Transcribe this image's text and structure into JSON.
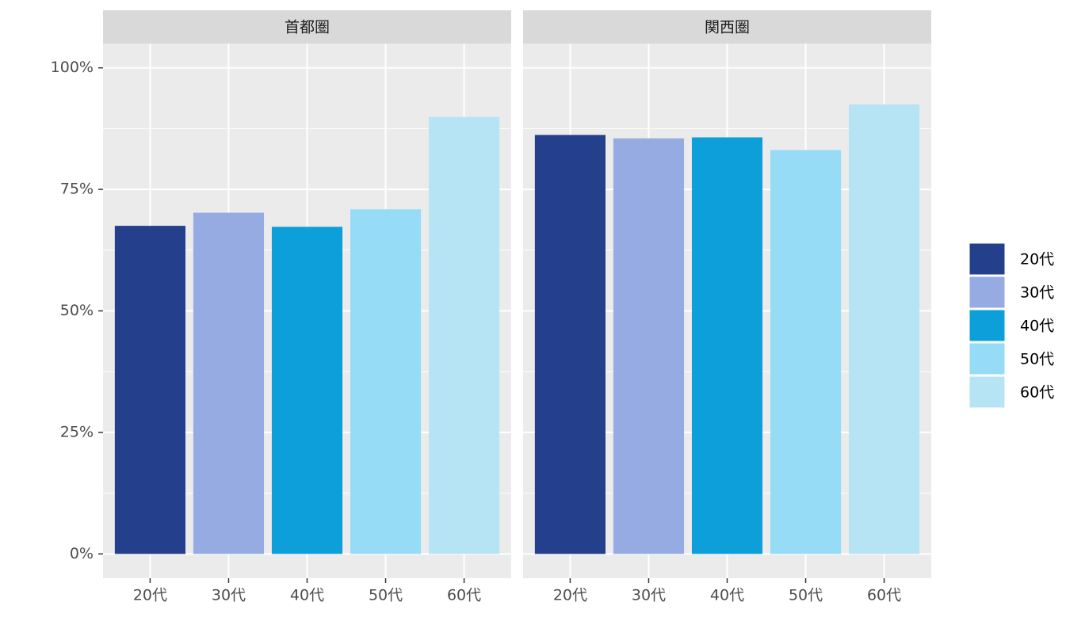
{
  "chart_data": [
    {
      "type": "bar",
      "title": "首都圏",
      "categories": [
        "20代",
        "30代",
        "40代",
        "50代",
        "60代"
      ],
      "values": [
        67.5,
        70.2,
        67.3,
        70.9,
        89.9
      ],
      "colors": [
        "#243f8c",
        "#97abe3",
        "#0c9fd9",
        "#97dcf7",
        "#b7e4f4"
      ],
      "ylim": [
        -5,
        105
      ],
      "yticks": [
        {
          "value": 0,
          "label": "0%"
        },
        {
          "value": 25,
          "label": "25%"
        },
        {
          "value": 50,
          "label": "50%"
        },
        {
          "value": 75,
          "label": "75%"
        },
        {
          "value": 100,
          "label": "100%"
        }
      ],
      "grid": true,
      "legend": "right"
    },
    {
      "type": "bar",
      "title": "関西圏",
      "categories": [
        "20代",
        "30代",
        "40代",
        "50代",
        "60代"
      ],
      "values": [
        86.2,
        85.5,
        85.7,
        83.1,
        92.5
      ],
      "colors": [
        "#243f8c",
        "#97abe3",
        "#0c9fd9",
        "#97dcf7",
        "#b7e4f4"
      ],
      "ylim": [
        -5,
        105
      ],
      "yticks": [
        {
          "value": 0,
          "label": "0%"
        },
        {
          "value": 25,
          "label": "25%"
        },
        {
          "value": 50,
          "label": "50%"
        },
        {
          "value": 75,
          "label": "75%"
        },
        {
          "value": 100,
          "label": "100%"
        }
      ],
      "grid": true
    }
  ]
}
